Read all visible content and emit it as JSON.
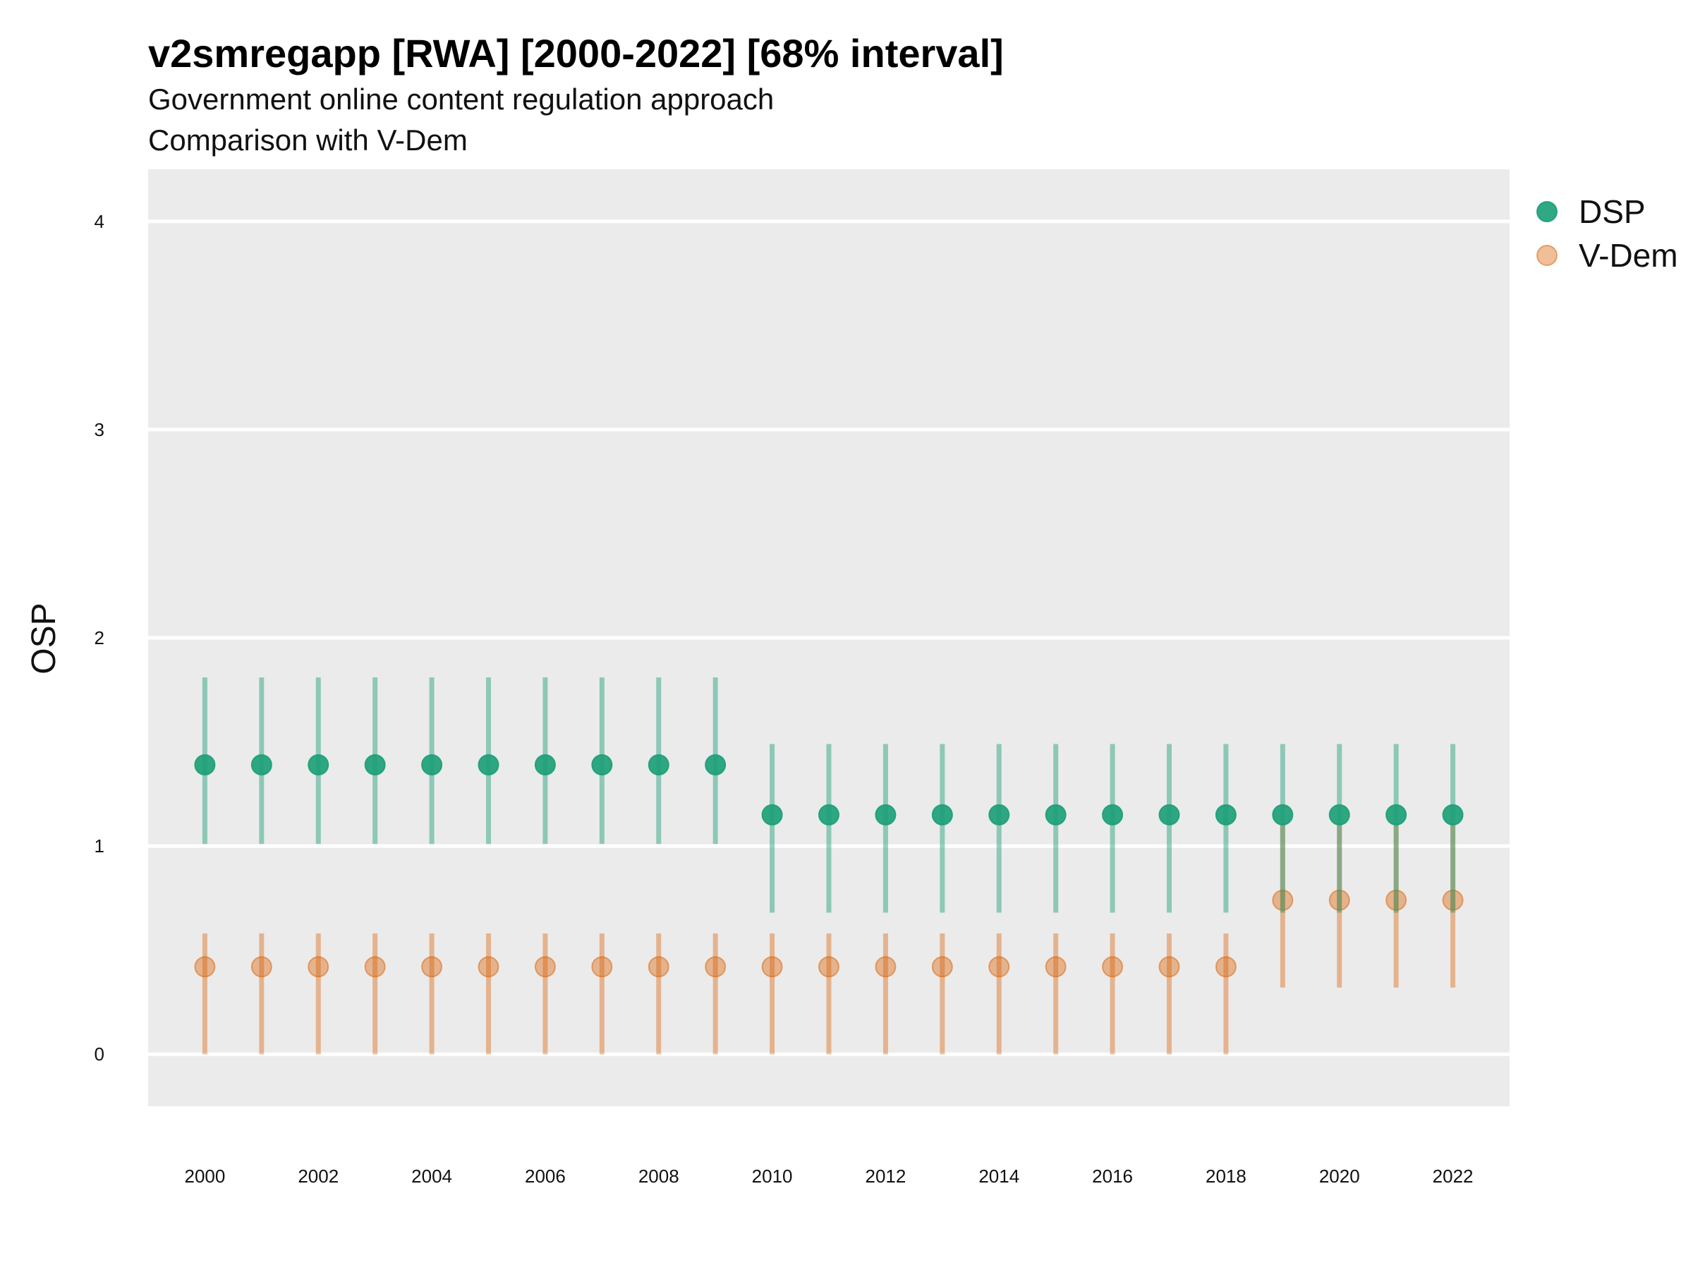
{
  "chart_data": {
    "type": "scatter",
    "title": "v2smregapp [RWA] [2000-2022] [68% interval]",
    "subtitle": "Government online content regulation approach",
    "subtitle2": "Comparison with V-Dem",
    "xlabel": "",
    "ylabel": "OSP",
    "xlim": [
      1999,
      2023
    ],
    "ylim": [
      -0.25,
      4.25
    ],
    "x_ticks": [
      "2000",
      "2002",
      "2004",
      "2006",
      "2008",
      "2010",
      "2012",
      "2014",
      "2016",
      "2018",
      "2020",
      "2022"
    ],
    "y_ticks": [
      "0",
      "1",
      "2",
      "3",
      "4"
    ],
    "grid": true,
    "legend_position": "right",
    "background": "#ebebeb",
    "x": [
      2000,
      2001,
      2002,
      2003,
      2004,
      2005,
      2006,
      2007,
      2008,
      2009,
      2010,
      2011,
      2012,
      2013,
      2014,
      2015,
      2016,
      2017,
      2018,
      2019,
      2020,
      2021,
      2022
    ],
    "series": [
      {
        "name": "DSP",
        "color": "#1b9e77",
        "values": [
          1.39,
          1.39,
          1.39,
          1.39,
          1.39,
          1.39,
          1.39,
          1.39,
          1.39,
          1.39,
          1.15,
          1.15,
          1.15,
          1.15,
          1.15,
          1.15,
          1.15,
          1.15,
          1.15,
          1.15,
          1.15,
          1.15,
          1.15
        ],
        "lower": [
          1.01,
          1.01,
          1.01,
          1.01,
          1.01,
          1.01,
          1.01,
          1.01,
          1.01,
          1.01,
          0.68,
          0.68,
          0.68,
          0.68,
          0.68,
          0.68,
          0.68,
          0.68,
          0.68,
          0.68,
          0.68,
          0.68,
          0.68
        ],
        "upper": [
          1.81,
          1.81,
          1.81,
          1.81,
          1.81,
          1.81,
          1.81,
          1.81,
          1.81,
          1.81,
          1.49,
          1.49,
          1.49,
          1.49,
          1.49,
          1.49,
          1.49,
          1.49,
          1.49,
          1.49,
          1.49,
          1.49,
          1.49
        ]
      },
      {
        "name": "V-Dem",
        "color": "#d95f02",
        "values": [
          0.42,
          0.42,
          0.42,
          0.42,
          0.42,
          0.42,
          0.42,
          0.42,
          0.42,
          0.42,
          0.42,
          0.42,
          0.42,
          0.42,
          0.42,
          0.42,
          0.42,
          0.42,
          0.42,
          0.74,
          0.74,
          0.74,
          0.74
        ],
        "lower": [
          0.0,
          0.0,
          0.0,
          0.0,
          0.0,
          0.0,
          0.0,
          0.0,
          0.0,
          0.0,
          0.0,
          0.0,
          0.0,
          0.0,
          0.0,
          0.0,
          0.0,
          0.0,
          0.0,
          0.32,
          0.32,
          0.32,
          0.32
        ],
        "upper": [
          0.58,
          0.58,
          0.58,
          0.58,
          0.58,
          0.58,
          0.58,
          0.58,
          0.58,
          0.58,
          0.58,
          0.58,
          0.58,
          0.58,
          0.58,
          0.58,
          0.58,
          0.58,
          0.58,
          1.11,
          1.11,
          1.11,
          1.11
        ]
      }
    ]
  }
}
